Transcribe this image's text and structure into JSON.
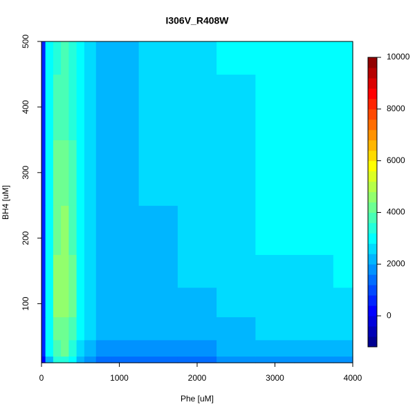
{
  "chart_data": {
    "type": "contour",
    "title": "I306V_R408W",
    "xlabel": "Phe [uM]",
    "ylabel": "BH4 [uM]",
    "xlim": [
      0,
      4000
    ],
    "ylim": [
      10,
      500
    ],
    "xticks": [
      0,
      1000,
      2000,
      3000,
      4000
    ],
    "yticks": [
      100,
      200,
      300,
      400,
      500
    ],
    "x": [
      0,
      100,
      200,
      300,
      400,
      500,
      600,
      800,
      1000,
      1500,
      2000,
      2500,
      3000,
      3500,
      4000
    ],
    "y": [
      10,
      30,
      60,
      100,
      150,
      200,
      300,
      400,
      500
    ],
    "z": [
      [
        300,
        2200,
        3200,
        3400,
        3000,
        2300,
        1700,
        1500,
        1400,
        1400,
        1500,
        1600,
        1700,
        1800,
        1900
      ],
      [
        500,
        2800,
        3800,
        4000,
        3500,
        2700,
        2100,
        1800,
        1700,
        1800,
        1900,
        2000,
        2100,
        2200,
        2300
      ],
      [
        600,
        3000,
        4200,
        4300,
        3900,
        3000,
        2500,
        2100,
        2000,
        2100,
        2200,
        2300,
        2400,
        2500,
        2500
      ],
      [
        600,
        3100,
        4400,
        4500,
        4000,
        3100,
        2600,
        2300,
        2250,
        2300,
        2350,
        2450,
        2550,
        2600,
        2650
      ],
      [
        600,
        3100,
        4400,
        4500,
        4000,
        3100,
        2600,
        2350,
        2300,
        2350,
        2400,
        2500,
        2650,
        2750,
        2800
      ],
      [
        600,
        3100,
        4300,
        4400,
        3900,
        3100,
        2600,
        2350,
        2300,
        2350,
        2450,
        2600,
        2800,
        2950,
        3000
      ],
      [
        600,
        3000,
        4100,
        4200,
        3700,
        3000,
        2500,
        2150,
        2300,
        2400,
        2500,
        2700,
        2900,
        3000,
        3050
      ],
      [
        600,
        2900,
        3900,
        3900,
        3500,
        2900,
        2400,
        2050,
        2250,
        2450,
        2550,
        2750,
        2950,
        3050,
        3100
      ],
      [
        600,
        2800,
        3500,
        3600,
        3300,
        2900,
        2400,
        2100,
        2200,
        2450,
        2600,
        2800,
        2950,
        3050,
        3050
      ]
    ],
    "colorbar": {
      "zlim": [
        -1200,
        10000
      ],
      "ticks": [
        0,
        2000,
        4000,
        6000,
        8000,
        10000
      ],
      "levels": [
        -1200,
        -800,
        -400,
        0,
        400,
        800,
        1200,
        1600,
        2000,
        2400,
        2800,
        3200,
        3600,
        4000,
        4400,
        4800,
        5200,
        5600,
        6000,
        6400,
        6800,
        7200,
        7600,
        8000,
        8400,
        8800,
        9200,
        9600,
        10000
      ]
    }
  }
}
